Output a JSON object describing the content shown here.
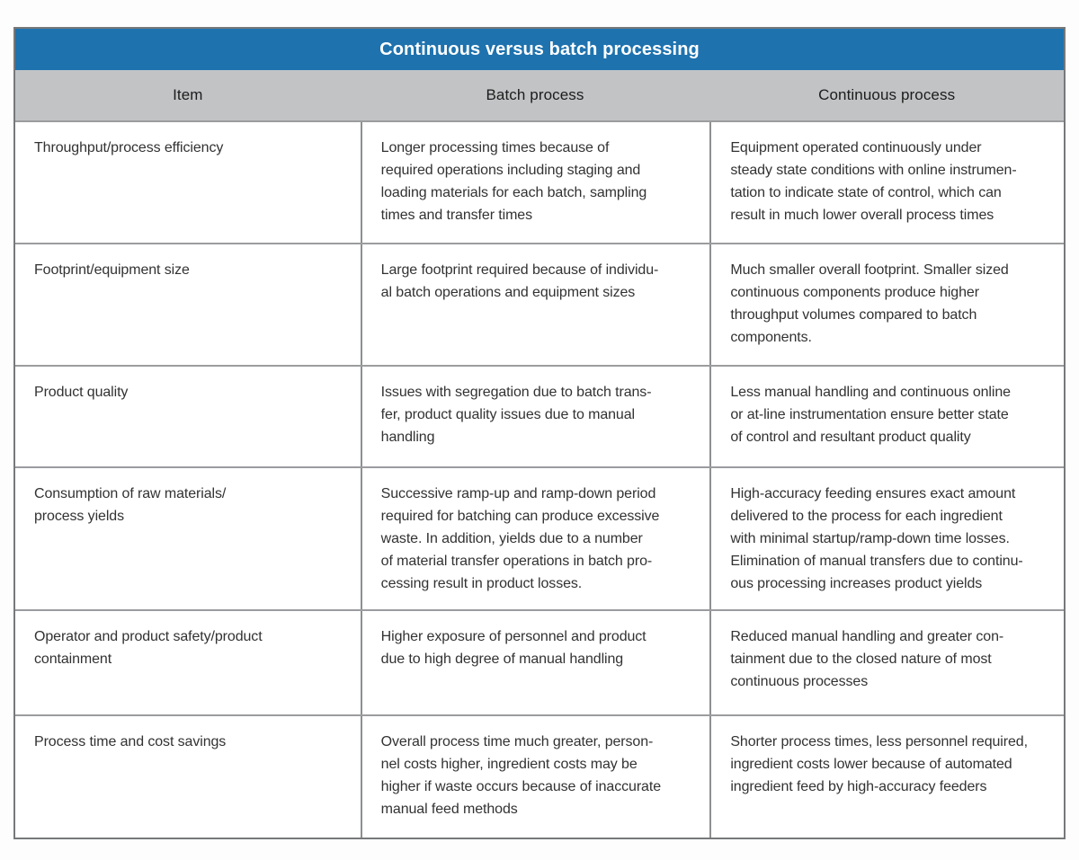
{
  "title": "Continuous versus batch processing",
  "colors": {
    "title_bar_blue": "#1e72ae",
    "header_band_gray": "#c1c3c5",
    "border_gray": "#8e8f91",
    "text_dark": "#323232"
  },
  "table": {
    "headers": [
      "Item",
      "Batch process",
      "Continuous process"
    ],
    "rows": [
      {
        "item": "Throughput/process efficiency",
        "batch": "Longer processing times because of\nrequired operations including staging and\nloading materials for each batch, sampling\ntimes and transfer times",
        "continuous": "Equipment operated continuously under\nsteady state conditions with online instrumen-\ntation to indicate state of control, which can\nresult in much lower overall process times"
      },
      {
        "item": "Footprint/equipment size",
        "batch": "Large footprint required because of individu-\nal batch operations and equipment sizes",
        "continuous": "Much smaller overall footprint. Smaller sized\ncontinuous components produce higher\nthroughput volumes compared to batch\ncomponents."
      },
      {
        "item": "Product quality",
        "batch": "Issues with segregation due to batch trans-\nfer, product quality issues due to manual\nhandling",
        "continuous": "Less manual handling and continuous online\nor at-line instrumentation ensure better state\nof control and resultant product quality"
      },
      {
        "item": "Consumption of raw materials/\nprocess yields",
        "batch": "Successive ramp-up and ramp-down period\nrequired for batching can produce excessive\nwaste. In addition, yields due to a number\nof material transfer operations in batch pro-\ncessing result in product losses.",
        "continuous": "High-accuracy feeding ensures exact amount\ndelivered to the process for each ingredient\nwith minimal startup/ramp-down time losses.\nElimination of manual transfers due to continu-\nous processing increases product yields"
      },
      {
        "item": "Operator and product safety/product\ncontainment",
        "batch": "Higher exposure of personnel and product\ndue to high degree of manual handling",
        "continuous": "Reduced manual handling and greater con-\ntainment due to the closed nature of most\ncontinuous processes"
      },
      {
        "item": "Process time and cost savings",
        "batch": "Overall process time much greater, person-\nnel costs higher, ingredient costs may be\nhigher if waste occurs because of inaccurate\nmanual feed methods",
        "continuous": "Shorter process times, less personnel required,\ningredient costs lower because of automated\ningredient feed by high-accuracy feeders"
      }
    ]
  },
  "chart_data": {
    "type": "table",
    "title": "Continuous versus batch processing",
    "columns": [
      "Item",
      "Batch process",
      "Continuous process"
    ],
    "rows": [
      [
        "Throughput/process efficiency",
        "Longer processing times because of required operations including staging and loading materials for each batch, sampling times and transfer times",
        "Equipment operated continuously under steady state conditions with online instrumentation to indicate state of control, which can result in much lower overall process times"
      ],
      [
        "Footprint/equipment size",
        "Large footprint required because of individual batch operations and equipment sizes",
        "Much smaller overall footprint. Smaller sized continuous components produce higher throughput volumes compared to batch components."
      ],
      [
        "Product quality",
        "Issues with segregation due to batch transfer, product quality issues due to manual handling",
        "Less manual handling and continuous online or at-line instrumentation ensure better state of control and resultant product quality"
      ],
      [
        "Consumption of raw materials/process yields",
        "Successive ramp-up and ramp-down period required for batching can produce excessive waste. In addition, yields due to a number of material transfer operations in batch processing result in product losses.",
        "High-accuracy feeding ensures exact amount delivered to the process for each ingredient with minimal startup/ramp-down time losses. Elimination of manual transfers due to continuous processing increases product yields"
      ],
      [
        "Operator and product safety/product containment",
        "Higher exposure of personnel and product due to high degree of manual handling",
        "Reduced manual handling and greater containment due to the closed nature of most continuous processes"
      ],
      [
        "Process time and cost savings",
        "Overall process time much greater, personnel costs higher, ingredient costs may be higher if waste occurs because of inaccurate manual feed methods",
        "Shorter process times, less personnel required, ingredient costs lower because of automated ingredient feed by high-accuracy feeders"
      ]
    ]
  }
}
